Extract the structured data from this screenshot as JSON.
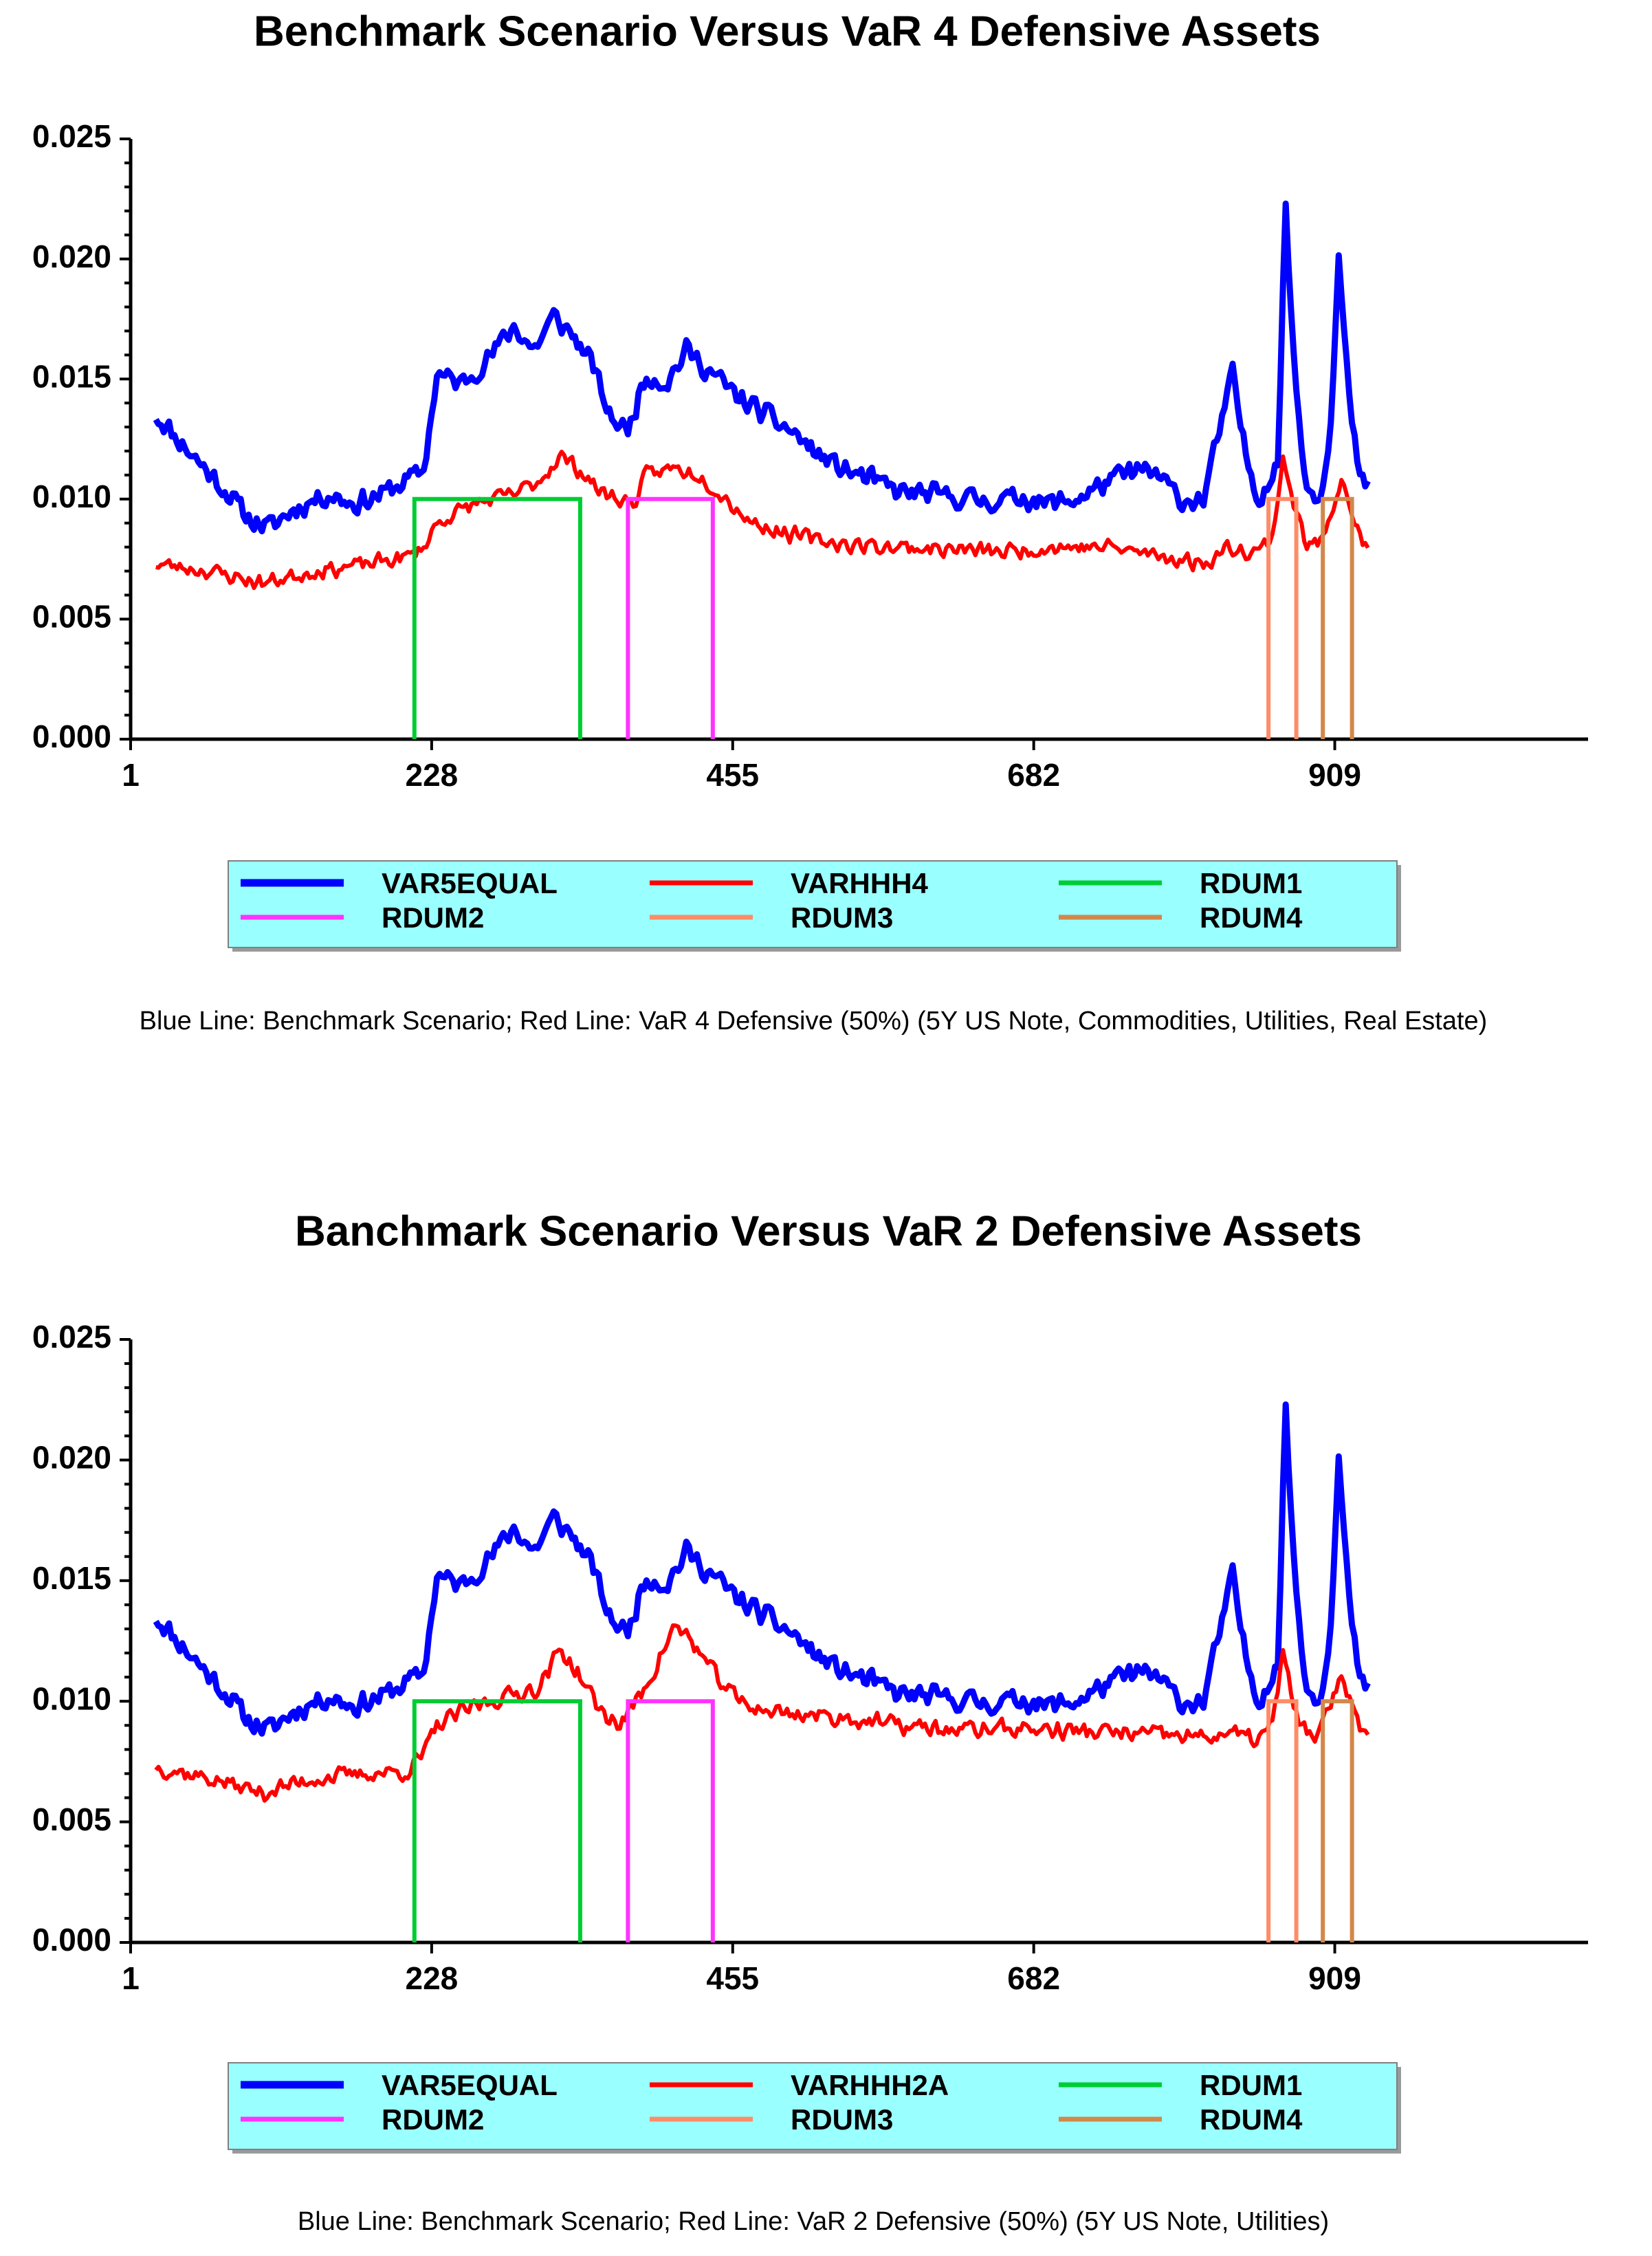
{
  "colors": {
    "VAR5EQUAL": "#0000ff",
    "VARHHH4": "#ff0000",
    "VARHHH2A": "#ff0000",
    "RDUM1": "#00cc33",
    "RDUM2": "#ff33ff",
    "RDUM3": "#ff8c66",
    "RDUM4": "#d2884a",
    "legend_bg": "#99ffff"
  },
  "chart_data": [
    {
      "type": "line",
      "title": "Benchmark Scenario Versus VaR 4 Defensive Assets",
      "caption": "Blue Line: Benchmark Scenario; Red Line: VaR 4 Defensive (50%) (5Y US Note, Commodities, Utilities, Real  Estate)",
      "xlabel": "",
      "ylabel": "",
      "xlim": [
        1,
        1100
      ],
      "ylim": [
        0,
        0.025
      ],
      "xticks": [
        "1",
        "228",
        "455",
        "682",
        "909"
      ],
      "yticks": [
        "0.000",
        "0.005",
        "0.010",
        "0.015",
        "0.020",
        "0.025"
      ],
      "legend": [
        "VAR5EQUAL",
        "VARHHH4",
        "RDUM1",
        "RDUM2",
        "RDUM3",
        "RDUM4"
      ],
      "series": [
        {
          "name": "VAR5EQUAL",
          "kind": "noisy",
          "seed": 11,
          "noise": 0.0006,
          "points": [
            [
              20,
              0.0135
            ],
            [
              45,
              0.012
            ],
            [
              70,
              0.0105
            ],
            [
              90,
              0.0092
            ],
            [
              105,
              0.0088
            ],
            [
              125,
              0.0096
            ],
            [
              150,
              0.0102
            ],
            [
              170,
              0.0098
            ],
            [
              190,
              0.0102
            ],
            [
              210,
              0.0108
            ],
            [
              222,
              0.0112
            ],
            [
              232,
              0.0152
            ],
            [
              250,
              0.0148
            ],
            [
              270,
              0.0158
            ],
            [
              290,
              0.0172
            ],
            [
              305,
              0.0162
            ],
            [
              320,
              0.0176
            ],
            [
              335,
              0.0168
            ],
            [
              350,
              0.0155
            ],
            [
              362,
              0.0135
            ],
            [
              375,
              0.0128
            ],
            [
              390,
              0.0152
            ],
            [
              405,
              0.0148
            ],
            [
              420,
              0.0162
            ],
            [
              440,
              0.0152
            ],
            [
              460,
              0.0142
            ],
            [
              480,
              0.0135
            ],
            [
              500,
              0.0128
            ],
            [
              520,
              0.0118
            ],
            [
              540,
              0.0112
            ],
            [
              560,
              0.0108
            ],
            [
              580,
              0.0103
            ],
            [
              600,
              0.0102
            ],
            [
              620,
              0.0101
            ],
            [
              650,
              0.0099
            ],
            [
              675,
              0.0101
            ],
            [
              690,
              0.0098
            ],
            [
              715,
              0.01
            ],
            [
              740,
              0.0108
            ],
            [
              760,
              0.0112
            ],
            [
              775,
              0.011
            ],
            [
              795,
              0.0099
            ],
            [
              810,
              0.01
            ],
            [
              832,
              0.0152
            ],
            [
              842,
              0.0118
            ],
            [
              852,
              0.01
            ],
            [
              866,
              0.0115
            ],
            [
              872,
              0.0222
            ],
            [
              879,
              0.015
            ],
            [
              888,
              0.0105
            ],
            [
              897,
              0.01
            ],
            [
              905,
              0.0125
            ],
            [
              912,
              0.02
            ],
            [
              920,
              0.014
            ],
            [
              928,
              0.0108
            ],
            [
              935,
              0.0105
            ]
          ]
        },
        {
          "name": "VARHHH4",
          "kind": "noisy",
          "seed": 23,
          "noise": 0.00045,
          "points": [
            [
              20,
              0.0073
            ],
            [
              60,
              0.007
            ],
            [
              100,
              0.0065
            ],
            [
              140,
              0.007
            ],
            [
              180,
              0.0073
            ],
            [
              210,
              0.0076
            ],
            [
              222,
              0.008
            ],
            [
              232,
              0.009
            ],
            [
              260,
              0.0098
            ],
            [
              290,
              0.0102
            ],
            [
              310,
              0.0108
            ],
            [
              325,
              0.0118
            ],
            [
              340,
              0.0112
            ],
            [
              355,
              0.0103
            ],
            [
              370,
              0.01
            ],
            [
              380,
              0.0098
            ],
            [
              390,
              0.011
            ],
            [
              410,
              0.0113
            ],
            [
              430,
              0.011
            ],
            [
              450,
              0.01
            ],
            [
              470,
              0.009
            ],
            [
              500,
              0.0085
            ],
            [
              540,
              0.0081
            ],
            [
              580,
              0.008
            ],
            [
              620,
              0.0079
            ],
            [
              660,
              0.0078
            ],
            [
              700,
              0.008
            ],
            [
              740,
              0.008
            ],
            [
              780,
              0.0076
            ],
            [
              810,
              0.0073
            ],
            [
              830,
              0.008
            ],
            [
              850,
              0.0078
            ],
            [
              862,
              0.0084
            ],
            [
              870,
              0.0118
            ],
            [
              878,
              0.0098
            ],
            [
              888,
              0.008
            ],
            [
              898,
              0.0082
            ],
            [
              908,
              0.0098
            ],
            [
              914,
              0.011
            ],
            [
              922,
              0.0095
            ],
            [
              930,
              0.008
            ],
            [
              935,
              0.008
            ]
          ]
        },
        {
          "name": "RDUM1",
          "kind": "rect",
          "start": 215,
          "end": 340,
          "value": 0.01
        },
        {
          "name": "RDUM2",
          "kind": "rect",
          "start": 376,
          "end": 440,
          "value": 0.01
        },
        {
          "name": "RDUM3",
          "kind": "rect",
          "start": 859,
          "end": 880,
          "value": 0.01
        },
        {
          "name": "RDUM4",
          "kind": "rect",
          "start": 900,
          "end": 922,
          "value": 0.01
        }
      ]
    },
    {
      "type": "line",
      "title": "Banchmark Scenario Versus VaR 2 Defensive Assets",
      "caption": "Blue Line: Benchmark Scenario; Red Line: VaR 2 Defensive (50%) (5Y US Note, Utilities)",
      "xlabel": "",
      "ylabel": "",
      "xlim": [
        1,
        1100
      ],
      "ylim": [
        0,
        0.025
      ],
      "xticks": [
        "1",
        "228",
        "455",
        "682",
        "909"
      ],
      "yticks": [
        "0.000",
        "0.005",
        "0.010",
        "0.015",
        "0.020",
        "0.025"
      ],
      "legend": [
        "VAR5EQUAL",
        "VARHHH2A",
        "RDUM1",
        "RDUM2",
        "RDUM3",
        "RDUM4"
      ],
      "series": [
        {
          "name": "VAR5EQUAL",
          "kind": "noisy",
          "seed": 11,
          "noise": 0.0006,
          "points": [
            [
              20,
              0.0135
            ],
            [
              45,
              0.012
            ],
            [
              70,
              0.0105
            ],
            [
              90,
              0.0092
            ],
            [
              105,
              0.0088
            ],
            [
              125,
              0.0096
            ],
            [
              150,
              0.0102
            ],
            [
              170,
              0.0098
            ],
            [
              190,
              0.0102
            ],
            [
              210,
              0.0108
            ],
            [
              222,
              0.0112
            ],
            [
              232,
              0.0152
            ],
            [
              250,
              0.0148
            ],
            [
              270,
              0.0158
            ],
            [
              290,
              0.0172
            ],
            [
              305,
              0.0162
            ],
            [
              320,
              0.0176
            ],
            [
              335,
              0.0168
            ],
            [
              350,
              0.0155
            ],
            [
              362,
              0.0135
            ],
            [
              375,
              0.0128
            ],
            [
              390,
              0.0152
            ],
            [
              405,
              0.0148
            ],
            [
              420,
              0.0162
            ],
            [
              440,
              0.0152
            ],
            [
              460,
              0.0142
            ],
            [
              480,
              0.0135
            ],
            [
              500,
              0.0128
            ],
            [
              520,
              0.0118
            ],
            [
              540,
              0.0112
            ],
            [
              560,
              0.0108
            ],
            [
              580,
              0.0103
            ],
            [
              600,
              0.0102
            ],
            [
              620,
              0.0101
            ],
            [
              650,
              0.0099
            ],
            [
              675,
              0.0101
            ],
            [
              690,
              0.0098
            ],
            [
              715,
              0.01
            ],
            [
              740,
              0.0108
            ],
            [
              760,
              0.0112
            ],
            [
              775,
              0.011
            ],
            [
              795,
              0.0099
            ],
            [
              810,
              0.01
            ],
            [
              832,
              0.0152
            ],
            [
              842,
              0.0118
            ],
            [
              852,
              0.01
            ],
            [
              866,
              0.0115
            ],
            [
              872,
              0.0222
            ],
            [
              879,
              0.015
            ],
            [
              888,
              0.0105
            ],
            [
              897,
              0.01
            ],
            [
              905,
              0.0125
            ],
            [
              912,
              0.02
            ],
            [
              920,
              0.014
            ],
            [
              928,
              0.0108
            ],
            [
              935,
              0.0105
            ]
          ]
        },
        {
          "name": "VARHHH2A",
          "kind": "noisy",
          "seed": 37,
          "noise": 0.0005,
          "points": [
            [
              20,
              0.0073
            ],
            [
              60,
              0.0068
            ],
            [
              100,
              0.0062
            ],
            [
              140,
              0.0068
            ],
            [
              180,
              0.007
            ],
            [
              210,
              0.0071
            ],
            [
              222,
              0.0078
            ],
            [
              232,
              0.009
            ],
            [
              260,
              0.0098
            ],
            [
              290,
              0.0103
            ],
            [
              310,
              0.0106
            ],
            [
              325,
              0.0122
            ],
            [
              340,
              0.011
            ],
            [
              355,
              0.0096
            ],
            [
              370,
              0.009
            ],
            [
              380,
              0.0098
            ],
            [
              395,
              0.0112
            ],
            [
              410,
              0.013
            ],
            [
              420,
              0.0128
            ],
            [
              440,
              0.0112
            ],
            [
              460,
              0.01
            ],
            [
              480,
              0.0096
            ],
            [
              500,
              0.0095
            ],
            [
              540,
              0.0093
            ],
            [
              580,
              0.009
            ],
            [
              620,
              0.0088
            ],
            [
              660,
              0.0089
            ],
            [
              700,
              0.0088
            ],
            [
              740,
              0.0087
            ],
            [
              780,
              0.0086
            ],
            [
              810,
              0.0085
            ],
            [
              830,
              0.0087
            ],
            [
              850,
              0.0084
            ],
            [
              862,
              0.009
            ],
            [
              870,
              0.012
            ],
            [
              878,
              0.0098
            ],
            [
              888,
              0.0085
            ],
            [
              898,
              0.0087
            ],
            [
              908,
              0.0102
            ],
            [
              914,
              0.0112
            ],
            [
              922,
              0.0098
            ],
            [
              930,
              0.0087
            ],
            [
              935,
              0.009
            ]
          ]
        },
        {
          "name": "RDUM1",
          "kind": "rect",
          "start": 215,
          "end": 340,
          "value": 0.01
        },
        {
          "name": "RDUM2",
          "kind": "rect",
          "start": 376,
          "end": 440,
          "value": 0.01
        },
        {
          "name": "RDUM3",
          "kind": "rect",
          "start": 859,
          "end": 880,
          "value": 0.01
        },
        {
          "name": "RDUM4",
          "kind": "rect",
          "start": 900,
          "end": 922,
          "value": 0.01
        }
      ]
    }
  ]
}
